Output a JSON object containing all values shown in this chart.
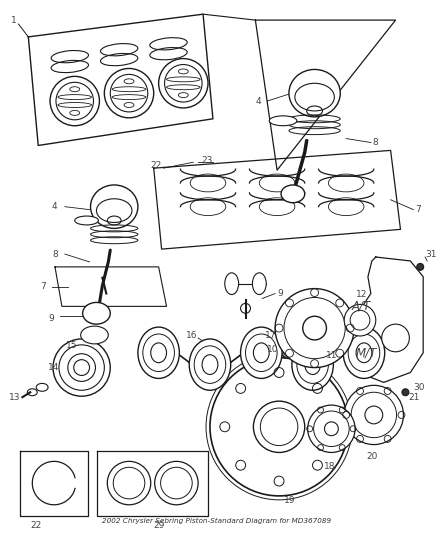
{
  "title": "2002 Chrysler Sebring Piston-Standard Diagram for MD367089",
  "background_color": "#ffffff",
  "figsize": [
    4.38,
    5.33
  ],
  "dpi": 100,
  "line_color": "#1a1a1a",
  "label_color": "#444444",
  "font_size": 6.5
}
